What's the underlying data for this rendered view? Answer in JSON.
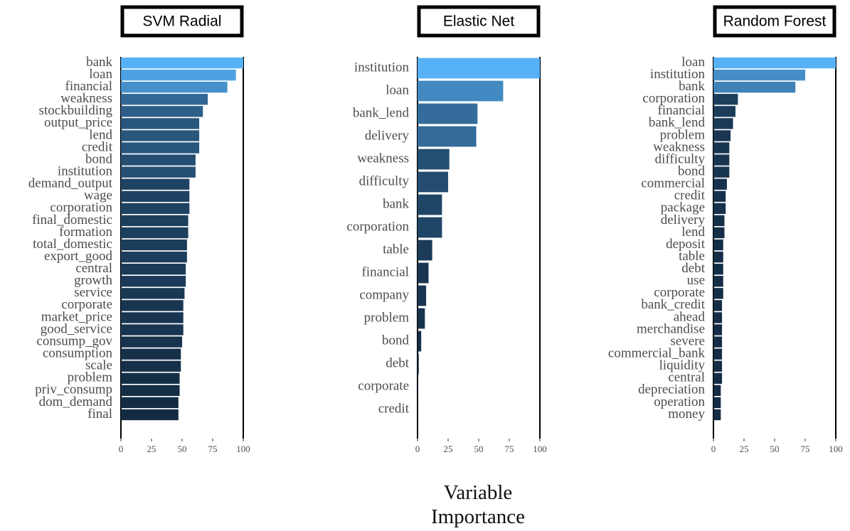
{
  "xlabel": "Variable Importance",
  "chart_data": [
    {
      "type": "bar",
      "orientation": "horizontal",
      "title": "SVM Radial",
      "categories": [
        "bank",
        "loan",
        "financial",
        "weakness",
        "stockbuilding",
        "output_price",
        "lend",
        "credit",
        "bond",
        "institution",
        "demand_output",
        "wage",
        "corporation",
        "final_domestic",
        "formation",
        "total_domestic",
        "export_good",
        "central",
        "growth",
        "service",
        "corporate",
        "market_price",
        "good_service",
        "consump_gov",
        "consumption",
        "scale",
        "problem",
        "priv_consump",
        "dom_demand",
        "final"
      ],
      "values": [
        100,
        94,
        87,
        71,
        67,
        64,
        64,
        64,
        61,
        61,
        56,
        56,
        56,
        55,
        55,
        54,
        54,
        53,
        53,
        52,
        51,
        51,
        51,
        50,
        49,
        49,
        48,
        48,
        47,
        47
      ],
      "xlim": [
        0,
        100
      ],
      "xticks": [
        0,
        25,
        50,
        75,
        100
      ],
      "color_low": "#132b43",
      "color_high": "#56b1f7"
    },
    {
      "type": "bar",
      "orientation": "horizontal",
      "title": "Elastic Net",
      "categories": [
        "institution",
        "loan",
        "bank_lend",
        "delivery",
        "weakness",
        "difficulty",
        "bank",
        "corporation",
        "table",
        "financial",
        "company",
        "problem",
        "bond",
        "debt",
        "corporate",
        "credit"
      ],
      "values": [
        100,
        70,
        49,
        48,
        26,
        25,
        20,
        20,
        12,
        9,
        7,
        6,
        3,
        1,
        0.5,
        0.2
      ],
      "xlim": [
        0,
        100
      ],
      "xticks": [
        0,
        25,
        50,
        75,
        100
      ],
      "color_low": "#132b43",
      "color_high": "#56b1f7"
    },
    {
      "type": "bar",
      "orientation": "horizontal",
      "title": "Random Forest",
      "categories": [
        "loan",
        "institution",
        "bank",
        "corporation",
        "financial",
        "bank_lend",
        "problem",
        "weakness",
        "difficulty",
        "bond",
        "commercial",
        "credit",
        "package",
        "delivery",
        "lend",
        "deposit",
        "table",
        "debt",
        "use",
        "corporate",
        "bank_credit",
        "ahead",
        "merchandise",
        "severe",
        "commercial_bank",
        "liquidity",
        "central",
        "depreciation",
        "operation",
        "money"
      ],
      "values": [
        100,
        75,
        67,
        20,
        18,
        16,
        14,
        13,
        13,
        13,
        11,
        10,
        10,
        9,
        9,
        8,
        8,
        8,
        8,
        8,
        7,
        7,
        7,
        7,
        7,
        7,
        7,
        6,
        6,
        6
      ],
      "xlim": [
        0,
        100
      ],
      "xticks": [
        0,
        25,
        50,
        75,
        100
      ],
      "color_low": "#132b43",
      "color_high": "#56b1f7"
    }
  ]
}
